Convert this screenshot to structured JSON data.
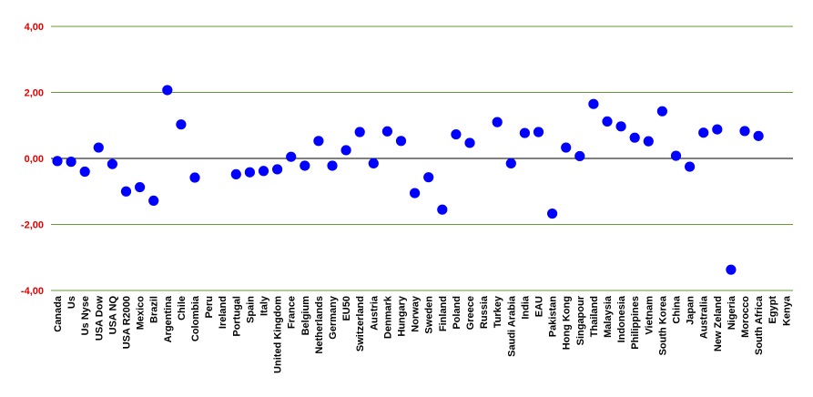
{
  "chart_data": {
    "type": "scatter",
    "title": "",
    "xlabel": "",
    "ylabel": "",
    "ylim": [
      -4,
      4
    ],
    "yticks": [
      "4,00",
      "2,00",
      "0,00",
      "-2,00",
      "-4,00"
    ],
    "ytick_values": [
      4,
      2,
      0,
      -2,
      -4
    ],
    "grid": true,
    "legend": "none",
    "colors": {
      "marker": "#0000ff",
      "grid": "#6a9a3a",
      "zero_line": "#000000",
      "ytick_label": "#e00000"
    },
    "categories": [
      "Canada",
      "Us",
      "Us Nyse",
      "USA Dow",
      "USA NQ",
      "USA R2000",
      "Mexico",
      "Brazil",
      "Argentina",
      "Chile",
      "Colombia",
      "Peru",
      "Ireland",
      "Portugal",
      "Spain",
      "Italy",
      "United Kingdom",
      "France",
      "Belgium",
      "Netherlands",
      "Germany",
      "EU50",
      "Switzerland",
      "Austria",
      "Denmark",
      "Hungary",
      "Norway",
      "Sweden",
      "Finland",
      "Poland",
      "Greece",
      "Russia",
      "Turkey",
      "Saudi Arabia",
      "India",
      "EAU",
      "Pakistan",
      "Hong Kong",
      "Singapour",
      "Thailand",
      "Malaysia",
      "Indonesia",
      "Philippines",
      "Vietnam",
      "South Korea",
      "China",
      "Japan",
      "Australia",
      "New Zeland",
      "Nigeria",
      "Morocco",
      "South Africa",
      "Egypt",
      "Kenya"
    ],
    "values": [
      -0.08,
      -0.1,
      -0.4,
      0.33,
      -0.17,
      -1.0,
      -0.87,
      -1.28,
      2.07,
      1.03,
      -0.58,
      null,
      null,
      -0.48,
      -0.42,
      -0.38,
      -0.33,
      0.05,
      -0.22,
      0.53,
      -0.22,
      0.25,
      0.8,
      -0.15,
      0.82,
      0.53,
      -1.05,
      -0.57,
      -1.55,
      0.73,
      0.47,
      null,
      1.1,
      -0.15,
      0.77,
      0.8,
      -1.67,
      0.33,
      0.07,
      1.65,
      1.12,
      0.97,
      0.63,
      0.52,
      1.43,
      0.08,
      -0.25,
      0.78,
      0.88,
      -3.37,
      0.83,
      0.68,
      null,
      null
    ]
  }
}
